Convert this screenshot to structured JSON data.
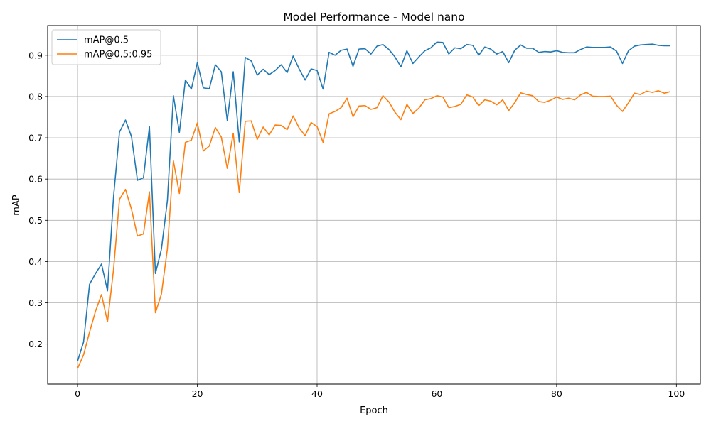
{
  "chart_data": {
    "type": "line",
    "title": "Model Performance - Model nano",
    "xlabel": "Epoch",
    "ylabel": "mAP",
    "xlim": [
      -5,
      104
    ],
    "ylim": [
      0.103,
      0.972
    ],
    "xticks": [
      0,
      20,
      40,
      60,
      80,
      100
    ],
    "xtick_labels": [
      "0",
      "20",
      "40",
      "60",
      "80",
      "100"
    ],
    "yticks": [
      0.2,
      0.3,
      0.4,
      0.5,
      0.6,
      0.7,
      0.8,
      0.9
    ],
    "ytick_labels": [
      "0.2",
      "0.3",
      "0.4",
      "0.5",
      "0.6",
      "0.7",
      "0.8",
      "0.9"
    ],
    "grid": true,
    "legend_position": "upper-left",
    "x": [
      0,
      1,
      2,
      3,
      4,
      5,
      6,
      7,
      8,
      9,
      10,
      11,
      12,
      13,
      14,
      15,
      16,
      17,
      18,
      19,
      20,
      21,
      22,
      23,
      24,
      25,
      26,
      27,
      28,
      29,
      30,
      31,
      32,
      33,
      34,
      35,
      36,
      37,
      38,
      39,
      40,
      41,
      42,
      43,
      44,
      45,
      46,
      47,
      48,
      49,
      50,
      51,
      52,
      53,
      54,
      55,
      56,
      57,
      58,
      59,
      60,
      61,
      62,
      63,
      64,
      65,
      66,
      67,
      68,
      69,
      70,
      71,
      72,
      73,
      74,
      75,
      76,
      77,
      78,
      79,
      80,
      81,
      82,
      83,
      84,
      85,
      86,
      87,
      88,
      89,
      90,
      91,
      92,
      93,
      94,
      95,
      96,
      97,
      98,
      99
    ],
    "series": [
      {
        "name": "mAP@0.5",
        "color": "#1f77b4",
        "values": [
          0.159,
          0.205,
          0.345,
          0.371,
          0.394,
          0.329,
          0.556,
          0.714,
          0.743,
          0.703,
          0.597,
          0.603,
          0.727,
          0.371,
          0.43,
          0.548,
          0.802,
          0.713,
          0.84,
          0.818,
          0.882,
          0.821,
          0.819,
          0.877,
          0.86,
          0.742,
          0.86,
          0.69,
          0.895,
          0.886,
          0.852,
          0.866,
          0.853,
          0.863,
          0.877,
          0.858,
          0.898,
          0.867,
          0.84,
          0.867,
          0.863,
          0.818,
          0.907,
          0.9,
          0.912,
          0.915,
          0.873,
          0.915,
          0.916,
          0.903,
          0.922,
          0.926,
          0.914,
          0.896,
          0.872,
          0.911,
          0.88,
          0.896,
          0.911,
          0.918,
          0.932,
          0.931,
          0.903,
          0.918,
          0.916,
          0.926,
          0.924,
          0.9,
          0.92,
          0.915,
          0.903,
          0.909,
          0.882,
          0.912,
          0.925,
          0.917,
          0.917,
          0.907,
          0.909,
          0.908,
          0.911,
          0.907,
          0.906,
          0.906,
          0.914,
          0.92,
          0.919,
          0.919,
          0.919,
          0.92,
          0.91,
          0.88,
          0.911,
          0.922,
          0.925,
          0.926,
          0.927,
          0.924,
          0.923,
          0.923
        ]
      },
      {
        "name": "mAP@0.5:0.95",
        "color": "#ff7f0e",
        "values": [
          0.141,
          0.174,
          0.229,
          0.28,
          0.32,
          0.254,
          0.38,
          0.551,
          0.575,
          0.527,
          0.462,
          0.467,
          0.569,
          0.276,
          0.321,
          0.431,
          0.644,
          0.565,
          0.689,
          0.694,
          0.736,
          0.668,
          0.68,
          0.725,
          0.702,
          0.626,
          0.711,
          0.567,
          0.74,
          0.741,
          0.696,
          0.726,
          0.707,
          0.731,
          0.73,
          0.72,
          0.753,
          0.724,
          0.705,
          0.737,
          0.727,
          0.689,
          0.758,
          0.764,
          0.773,
          0.796,
          0.751,
          0.777,
          0.778,
          0.769,
          0.773,
          0.802,
          0.787,
          0.762,
          0.744,
          0.781,
          0.759,
          0.772,
          0.792,
          0.795,
          0.802,
          0.799,
          0.773,
          0.776,
          0.781,
          0.804,
          0.799,
          0.778,
          0.792,
          0.789,
          0.78,
          0.792,
          0.766,
          0.785,
          0.809,
          0.805,
          0.802,
          0.788,
          0.786,
          0.791,
          0.799,
          0.793,
          0.796,
          0.792,
          0.804,
          0.81,
          0.801,
          0.8,
          0.8,
          0.801,
          0.779,
          0.764,
          0.785,
          0.808,
          0.805,
          0.813,
          0.81,
          0.814,
          0.808,
          0.812
        ]
      }
    ]
  }
}
